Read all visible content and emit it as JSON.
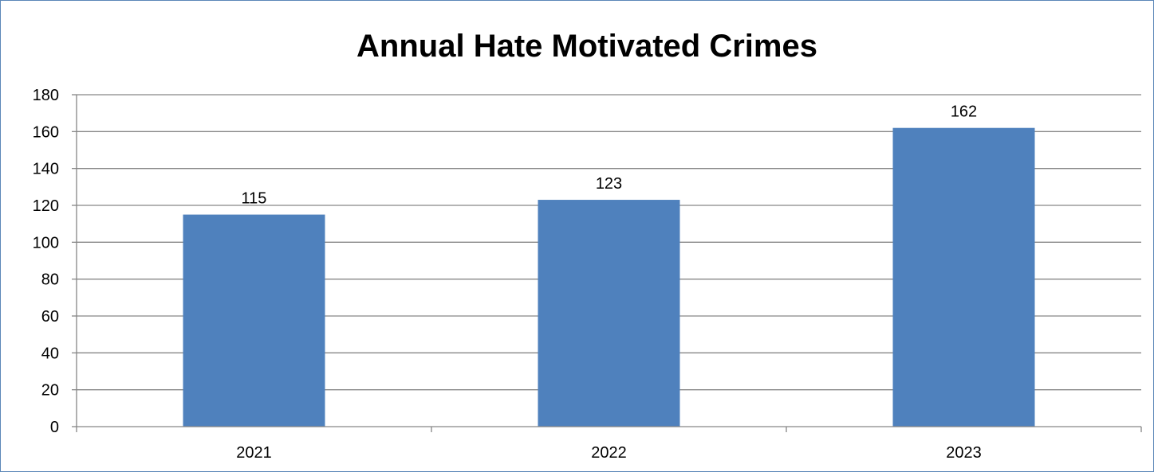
{
  "chart_data": {
    "type": "bar",
    "title": "Annual Hate Motivated Crimes",
    "categories": [
      "2021",
      "2022",
      "2023"
    ],
    "values": [
      115,
      123,
      162
    ],
    "data_labels": [
      "115",
      "123",
      "162"
    ],
    "ylim": [
      0,
      180
    ],
    "yticks": [
      0,
      20,
      40,
      60,
      80,
      100,
      120,
      140,
      160,
      180
    ],
    "ytick_labels": [
      "0",
      "20",
      "40",
      "60",
      "80",
      "100",
      "120",
      "140",
      "160",
      "180"
    ],
    "xlabel": "",
    "ylabel": "",
    "grid": true,
    "legend": "none",
    "colors": {
      "bar": "#4f81bd",
      "grid": "#868686",
      "axis": "#868686",
      "frame": "#5b87b8"
    }
  }
}
